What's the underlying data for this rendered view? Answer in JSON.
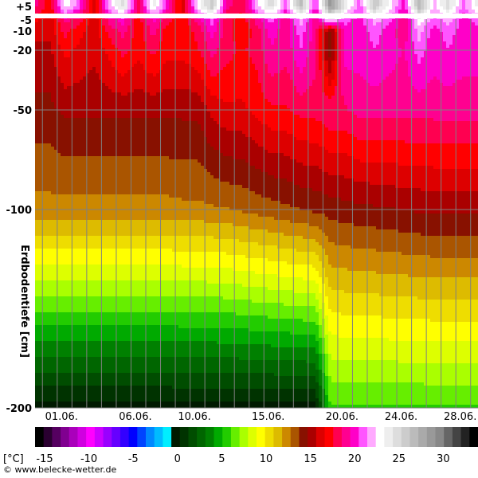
{
  "chart_data": {
    "type": "heatmap",
    "y_axis": {
      "label": "Erdbodentiefe [cm]",
      "ticks": [
        {
          "value": 5,
          "label": "+5"
        },
        {
          "value": -5,
          "label": "-5"
        },
        {
          "value": -10,
          "label": "-10"
        },
        {
          "value": -20,
          "label": "-20"
        },
        {
          "value": -50,
          "label": "-50"
        },
        {
          "value": -100,
          "label": "-100"
        },
        {
          "value": -200,
          "label": "-200"
        }
      ]
    },
    "x_axis": {
      "start_day": 30,
      "end_day": 30,
      "ticks": [
        {
          "day": 1,
          "label": "01.06."
        },
        {
          "day": 6,
          "label": "06.06."
        },
        {
          "day": 10,
          "label": "10.06."
        },
        {
          "day": 15,
          "label": "15.06."
        },
        {
          "day": 20,
          "label": "20.06."
        },
        {
          "day": 24,
          "label": "24.06."
        },
        {
          "day": 28,
          "label": "28.06."
        }
      ]
    },
    "colorbar": {
      "unit_label": "[°C]",
      "min": -15,
      "max": 35,
      "ticks": [
        {
          "value": -15,
          "label": "-15"
        },
        {
          "value": -10,
          "label": "-10"
        },
        {
          "value": -5,
          "label": "-5"
        },
        {
          "value": 0,
          "label": "0"
        },
        {
          "value": 5,
          "label": "5"
        },
        {
          "value": 10,
          "label": "10"
        },
        {
          "value": 15,
          "label": "15"
        },
        {
          "value": 20,
          "label": "20"
        },
        {
          "value": 25,
          "label": "25"
        },
        {
          "value": 30,
          "label": "30"
        }
      ],
      "colors": [
        "#000000",
        "#2a0030",
        "#550060",
        "#800090",
        "#aa00bb",
        "#d000e0",
        "#ff00ff",
        "#cc00ff",
        "#9900ff",
        "#6600ff",
        "#3300ff",
        "#0000ff",
        "#0044ff",
        "#0088ff",
        "#00bbff",
        "#00eeff",
        "#001a00",
        "#003300",
        "#004d00",
        "#006600",
        "#008000",
        "#00aa00",
        "#22cc00",
        "#66ee00",
        "#aaff00",
        "#ddff00",
        "#ffff00",
        "#eedd00",
        "#ddbb00",
        "#cc8800",
        "#aa5500",
        "#881100",
        "#aa0000",
        "#dd0000",
        "#ff0000",
        "#ff0050",
        "#ff0090",
        "#ff00c8",
        "#ff55ff",
        "#ffaaff",
        "#ffffff",
        "#eeeeee",
        "#dddddd",
        "#cccccc",
        "#bbbbbb",
        "#aaaaaa",
        "#999999",
        "#888888",
        "#666666",
        "#444444",
        "#222222",
        "#000000"
      ]
    },
    "depth_profiles": [
      {
        "depth": 5,
        "temps": [
          20,
          18,
          24,
          22,
          17,
          23,
          26,
          19,
          25,
          21,
          17,
          24,
          27,
          20,
          19,
          23,
          26,
          22,
          28,
          21,
          30,
          25,
          22,
          27,
          24,
          21,
          28,
          23,
          26,
          22,
          25
        ]
      },
      {
        "depth": -5,
        "temps": [
          18,
          17,
          20,
          19,
          17,
          20,
          21,
          18,
          21,
          19,
          18,
          20,
          22,
          19,
          18,
          20,
          22,
          20,
          23,
          20,
          24,
          22,
          21,
          23,
          22,
          20,
          24,
          22,
          23,
          21,
          22
        ]
      },
      {
        "depth": -10,
        "temps": [
          17,
          17,
          19,
          18,
          17,
          19,
          20,
          18,
          20,
          18,
          18,
          19,
          21,
          19,
          18,
          19,
          21,
          20,
          22,
          20,
          15,
          21,
          21,
          22,
          21,
          20,
          23,
          21,
          22,
          21,
          21
        ]
      },
      {
        "depth": -20,
        "temps": [
          16.5,
          16.5,
          18,
          17.5,
          17,
          18,
          19,
          18,
          19,
          18,
          18,
          18.5,
          20,
          19,
          18.5,
          19,
          20.5,
          20,
          21.5,
          20,
          15,
          21,
          21,
          21.5,
          21,
          20.5,
          22,
          21,
          21.5,
          21,
          21
        ]
      },
      {
        "depth": -50,
        "temps": [
          15.5,
          15.5,
          16,
          16,
          16,
          16,
          16,
          16,
          16,
          16,
          16,
          16,
          17,
          17.5,
          17.5,
          18,
          18.5,
          18.5,
          19,
          19,
          19.5,
          19.5,
          20,
          20,
          20,
          20,
          20,
          20,
          20,
          20,
          20
        ]
      },
      {
        "depth": -100,
        "temps": [
          13.5,
          13.5,
          13.5,
          13.5,
          13.5,
          13.5,
          13.5,
          13.5,
          13.5,
          13.5,
          13.6,
          13.6,
          13.7,
          13.8,
          14,
          14.2,
          14.4,
          14.6,
          14.8,
          15,
          15.2,
          15.4,
          15.5,
          15.6,
          15.7,
          15.8,
          15.9,
          16,
          16,
          16,
          16
        ]
      },
      {
        "depth": -200,
        "temps": [
          1,
          1,
          1,
          1,
          1,
          1,
          1,
          1,
          1,
          1,
          1,
          1,
          1,
          1,
          1,
          1,
          1,
          1,
          1,
          1,
          7,
          7,
          7,
          7,
          7,
          7,
          7,
          7,
          7,
          7,
          7
        ]
      }
    ]
  },
  "footer": {
    "copyright": "© www.belecke-wetter.de"
  }
}
